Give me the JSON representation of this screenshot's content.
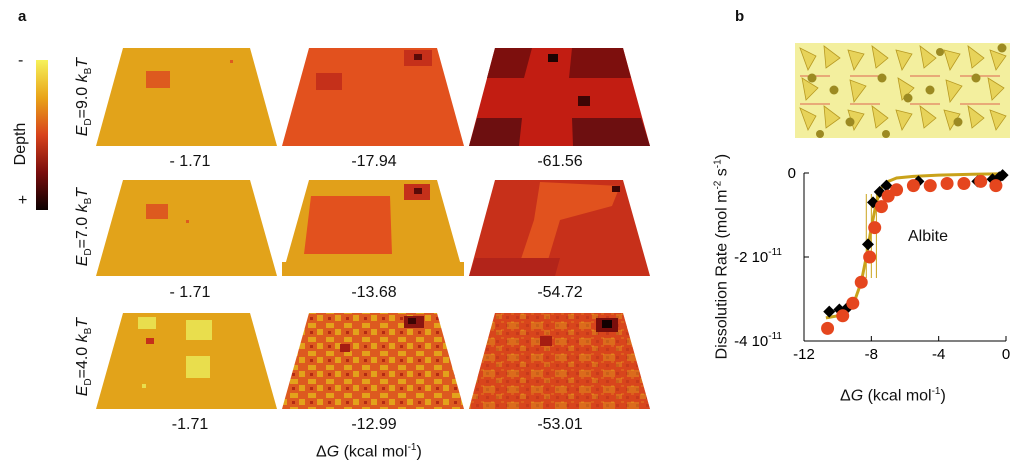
{
  "panel_a": {
    "letter": "a",
    "colorbar": {
      "title": "Depth",
      "top_sign": "-",
      "bottom_sign": "+",
      "colors": [
        "#f6f25a",
        "#e9a418",
        "#d8431c",
        "#7a0d0d",
        "#0b0000"
      ]
    },
    "rows": [
      {
        "label_prefix": "E",
        "label_sub": "D",
        "label_mid": "=9.0 ",
        "label_k": "k",
        "label_ksub": "B",
        "label_T": "T"
      },
      {
        "label_prefix": "E",
        "label_sub": "D",
        "label_mid": "=7.0 ",
        "label_k": "k",
        "label_ksub": "B",
        "label_T": "T"
      },
      {
        "label_prefix": "E",
        "label_sub": "D",
        "label_mid": "=4.0 ",
        "label_k": "k",
        "label_ksub": "B",
        "label_T": "T"
      }
    ],
    "values": [
      [
        "- 1.71",
        "-17.94",
        "-61.56"
      ],
      [
        "- 1.71",
        "-13.68",
        "-54.72"
      ],
      [
        "-1.71",
        "-12.99",
        "-53.01"
      ]
    ],
    "xlabel_prefix": "Δ",
    "xlabel_G": "G",
    "xlabel_rest": " (kcal mol",
    "xlabel_sup": "-1",
    "xlabel_end": ")"
  },
  "panel_b": {
    "letter": "b",
    "annotation": "Albite",
    "ylabel_main": "Dissolution Rate (mol m",
    "ylabel_sup1": "-2",
    "ylabel_mid": " s",
    "ylabel_sup2": "-1",
    "ylabel_end": ")",
    "xlabel_prefix": "Δ",
    "xlabel_G": "G",
    "xlabel_rest": " (kcal mol",
    "xlabel_sup": "-1",
    "xlabel_end": ")"
  },
  "chart_data": {
    "type": "scatter",
    "xlim": [
      -12,
      0
    ],
    "ylim": [
      -4e-11,
      0
    ],
    "xticks": [
      -12,
      -8,
      -4,
      0
    ],
    "xtick_labels": [
      "-12",
      "-8",
      "-4",
      "0"
    ],
    "yticks": [
      0,
      -2e-11,
      -4e-11
    ],
    "ytick_labels": [
      "0",
      "-2 10",
      "-4 10"
    ],
    "ytick_exp": [
      "",
      "-11",
      "-11"
    ],
    "series": [
      {
        "marker": "diamond",
        "color": "#000000",
        "x": [
          -10.5,
          -9.9,
          -9.4,
          -8.2,
          -7.9,
          -7.5,
          -7.1,
          -5.2,
          -3.5,
          -1.7,
          -0.8,
          -0.4,
          -0.2
        ],
        "y": [
          -3.3e-11,
          -3.25e-11,
          -3.2e-11,
          -1.7e-11,
          -7e-12,
          -4.5e-12,
          -3e-12,
          -2e-12,
          -2.5e-12,
          -2e-12,
          -1.5e-12,
          -1e-12,
          -5e-13
        ]
      },
      {
        "marker": "circle",
        "color": "#e5461e",
        "x": [
          -10.6,
          -9.7,
          -9.1,
          -8.6,
          -8.1,
          -7.8,
          -7.4,
          -7.0,
          -6.5,
          -5.5,
          -4.5,
          -3.5,
          -2.5,
          -1.5,
          -0.6
        ],
        "y": [
          -3.7e-11,
          -3.4e-11,
          -3.1e-11,
          -2.6e-11,
          -2e-11,
          -1.3e-11,
          -8e-12,
          -5.5e-12,
          -4e-12,
          -3e-12,
          -3e-12,
          -2.5e-12,
          -2.5e-12,
          -2e-12,
          -3e-12
        ]
      }
    ],
    "fit_curve": {
      "color": "#c9a21a",
      "x": [
        -10.7,
        -10,
        -9.5,
        -9,
        -8.6,
        -8.3,
        -8,
        -7.7,
        -7.4,
        -7,
        -6.5,
        -5.5,
        -4,
        -2,
        0
      ],
      "y": [
        -3.45e-11,
        -3.4e-11,
        -3.3e-11,
        -3.05e-11,
        -2.6e-11,
        -2e-11,
        -1.3e-11,
        -7e-12,
        -3.5e-12,
        -2e-12,
        -1.2e-12,
        -8e-13,
        -5e-13,
        -3e-13,
        -2e-13
      ]
    }
  }
}
